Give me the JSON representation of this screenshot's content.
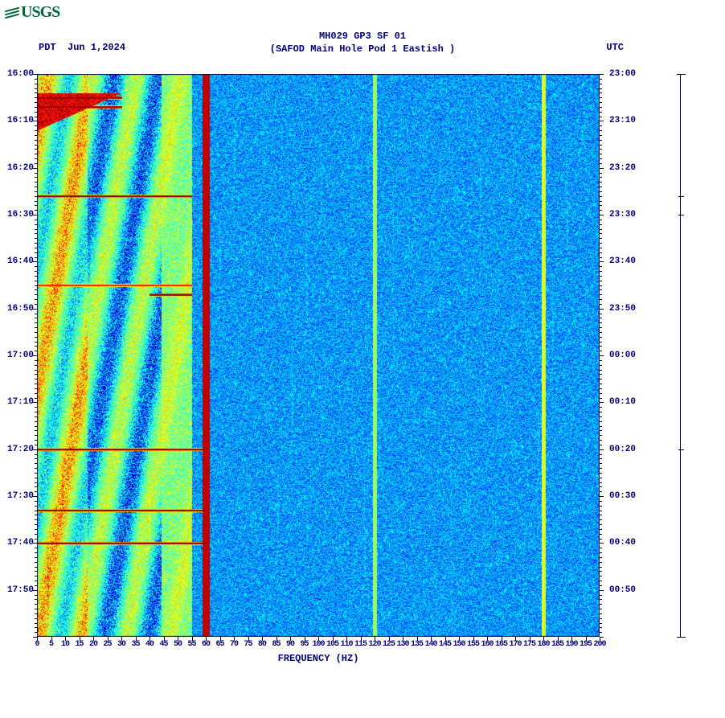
{
  "logo_text": "USGS",
  "title_line1": "MH029 GP3 SF 01",
  "title_line2": "(SAFOD Main Hole Pod 1 Eastish )",
  "tz_left": "PDT",
  "date_left": "Jun 1,2024",
  "tz_right": "UTC",
  "x_axis_title": "FREQUENCY (HZ)",
  "chart": {
    "type": "spectrogram",
    "freq_min": 0,
    "freq_max": 200,
    "freq_tick_step": 5,
    "time_pdt_start": "16:00",
    "time_pdt_end": "18:00",
    "time_utc_start": "23:00",
    "time_utc_end": "01:00",
    "time_minor_tick_minutes": 1,
    "pdt_labels": [
      "16:00",
      "16:10",
      "16:20",
      "16:30",
      "16:40",
      "16:50",
      "17:00",
      "17:10",
      "17:20",
      "17:30",
      "17:40",
      "17:50"
    ],
    "utc_labels": [
      "23:00",
      "23:10",
      "23:20",
      "23:30",
      "23:40",
      "23:50",
      "00:00",
      "00:10",
      "00:20",
      "00:30",
      "00:40",
      "00:50"
    ],
    "freq_labels": [
      0,
      5,
      10,
      15,
      20,
      25,
      30,
      35,
      40,
      45,
      50,
      55,
      60,
      65,
      70,
      75,
      80,
      85,
      90,
      95,
      100,
      105,
      110,
      115,
      120,
      125,
      130,
      135,
      140,
      145,
      150,
      155,
      160,
      165,
      170,
      175,
      180,
      185,
      190,
      195,
      200
    ],
    "colormap": [
      "#00007f",
      "#0000ff",
      "#0080ff",
      "#00ffff",
      "#40ffC0",
      "#80ff80",
      "#c0ff40",
      "#ffff00",
      "#ff8000",
      "#ff0000",
      "#800000"
    ],
    "background_color": "#ffffff",
    "axis_color": "#00007f",
    "persistent_lines_hz": [
      60,
      120,
      180
    ],
    "persistent_line_color": "#8b0000",
    "low_freq_region": {
      "hz_range": [
        0,
        55
      ],
      "dominant_colors": [
        "#40e0d0",
        "#ffff00",
        "#ff8000",
        "#8b0000"
      ]
    },
    "high_freq_region": {
      "hz_range": [
        60,
        200
      ],
      "dominant_color": "#1e90ff"
    },
    "events": [
      {
        "pdt": "16:05",
        "hz_range": [
          0,
          30
        ],
        "intensity": "high",
        "color": "#8b0000"
      },
      {
        "pdt": "16:07",
        "hz_range": [
          0,
          30
        ],
        "intensity": "high",
        "color": "#8b0000"
      },
      {
        "pdt": "16:26",
        "hz_range": [
          0,
          55
        ],
        "intensity": "high",
        "color": "#8b0000"
      },
      {
        "pdt": "16:45",
        "hz_range": [
          0,
          55
        ],
        "intensity": "medium",
        "color": "#ff8000"
      },
      {
        "pdt": "16:47",
        "hz_range": [
          40,
          55
        ],
        "intensity": "high",
        "color": "#8b0000"
      },
      {
        "pdt": "17:20",
        "hz_range": [
          0,
          60
        ],
        "intensity": "high",
        "color": "#8b0000"
      },
      {
        "pdt": "17:33",
        "hz_range": [
          0,
          60
        ],
        "intensity": "high",
        "color": "#8b0000"
      },
      {
        "pdt": "17:40",
        "hz_range": [
          0,
          60
        ],
        "intensity": "high",
        "color": "#8b0000"
      }
    ],
    "side_track_ticks_pdt": [
      "16:00",
      "16:26",
      "16:30",
      "17:20",
      "18:00"
    ]
  }
}
